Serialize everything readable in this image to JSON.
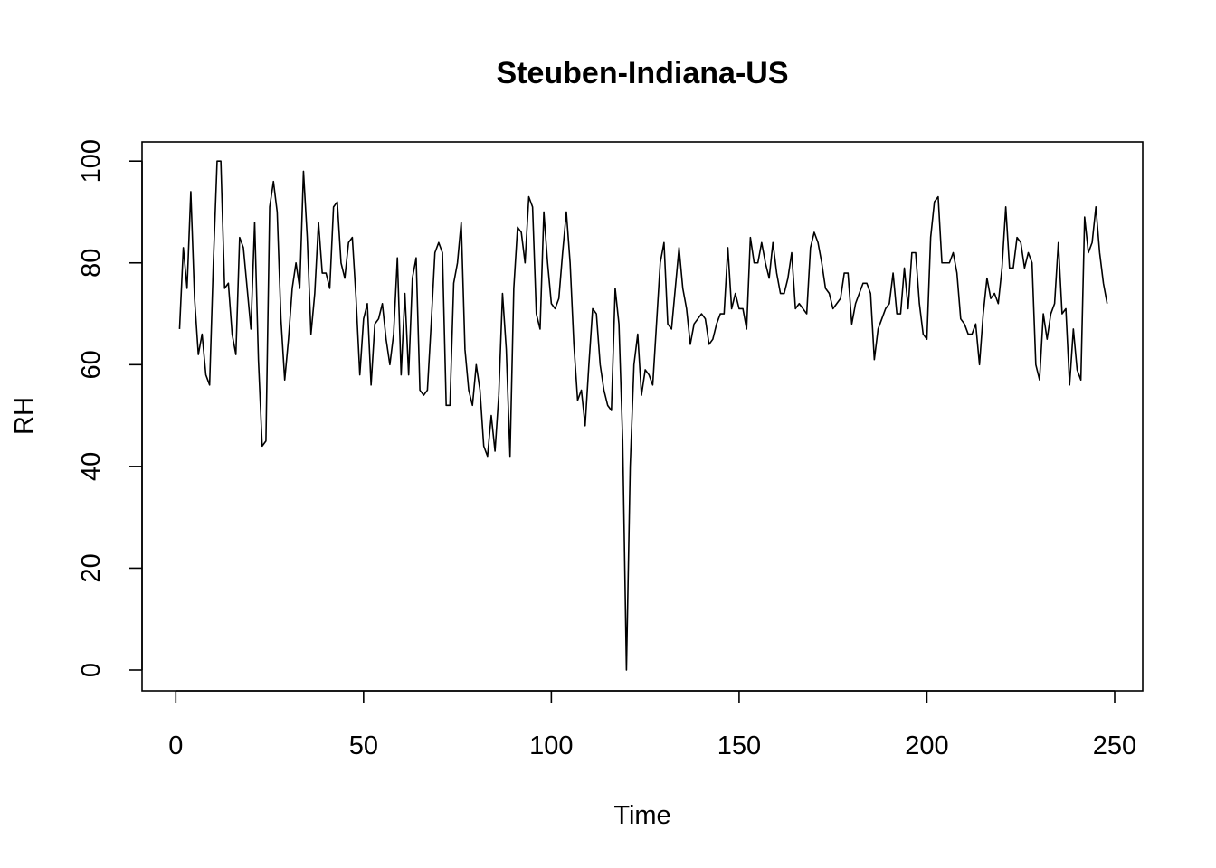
{
  "chart_data": {
    "type": "line",
    "title": "Steuben-Indiana-US",
    "xlabel": "Time",
    "ylabel": "RH",
    "xlim": [
      1,
      248
    ],
    "ylim": [
      0,
      100
    ],
    "x_ticks": [
      0,
      50,
      100,
      150,
      200,
      250
    ],
    "y_ticks": [
      0,
      20,
      40,
      60,
      80,
      100
    ],
    "grid": false,
    "legend": "none",
    "line_color": "#000000",
    "series": [
      {
        "values": [
          67,
          83,
          75,
          94,
          73,
          62,
          66,
          58,
          56,
          80,
          100,
          100,
          75,
          76,
          66,
          62,
          85,
          83,
          75,
          67,
          88,
          61,
          44,
          45,
          91,
          96,
          90,
          69,
          57,
          65,
          75,
          80,
          75,
          98,
          85,
          66,
          74,
          88,
          78,
          78,
          75,
          91,
          92,
          80,
          77,
          84,
          85,
          73,
          58,
          69,
          72,
          56,
          68,
          69,
          72,
          65,
          60,
          66,
          81,
          58,
          74,
          58,
          77,
          81,
          55,
          54,
          55,
          68,
          82,
          84,
          82,
          52,
          52,
          76,
          80,
          88,
          63,
          55,
          52,
          60,
          55,
          44,
          42,
          50,
          43,
          54,
          74,
          63,
          42,
          75,
          87,
          86,
          80,
          93,
          91,
          70,
          67,
          90,
          80,
          72,
          71,
          73,
          82,
          90,
          80,
          64,
          53,
          55,
          48,
          60,
          71,
          70,
          60,
          55,
          52,
          51,
          75,
          68,
          45,
          0,
          40,
          60,
          66,
          54,
          59,
          58,
          56,
          68,
          80,
          84,
          68,
          67,
          75,
          83,
          75,
          71,
          64,
          68,
          69,
          70,
          69,
          64,
          65,
          68,
          70,
          70,
          83,
          71,
          74,
          71,
          71,
          67,
          85,
          80,
          80,
          84,
          80,
          77,
          84,
          78,
          74,
          74,
          77,
          82,
          71,
          72,
          71,
          70,
          83,
          86,
          84,
          80,
          75,
          74,
          71,
          72,
          73,
          78,
          78,
          68,
          72,
          74,
          76,
          76,
          74,
          61,
          67,
          69,
          71,
          72,
          78,
          70,
          70,
          79,
          71,
          82,
          82,
          72,
          66,
          65,
          85,
          92,
          93,
          80,
          80,
          80,
          82,
          78,
          69,
          68,
          66,
          66,
          68,
          60,
          70,
          77,
          73,
          74,
          72,
          79,
          91,
          79,
          79,
          85,
          84,
          79,
          82,
          80,
          60,
          57,
          70,
          65,
          70,
          72,
          84,
          70,
          71,
          56,
          67,
          59,
          57,
          89,
          82,
          84,
          91,
          82,
          76,
          72
        ]
      }
    ]
  }
}
